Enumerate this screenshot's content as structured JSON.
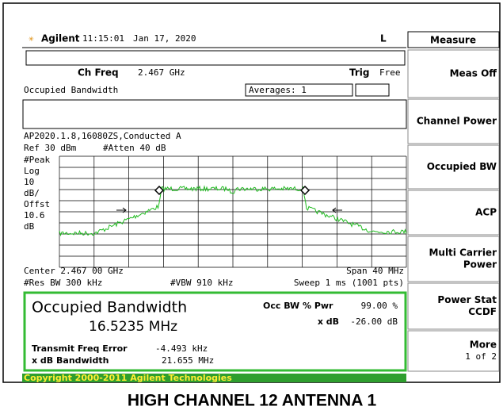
{
  "header": {
    "brand": "Agilent",
    "time": "11:15:01",
    "date": "Jan 17, 2020",
    "mode": "L"
  },
  "menu": {
    "title": "Measure",
    "buttons": [
      [
        "Meas Off"
      ],
      [
        "Channel Power"
      ],
      [
        "Occupied BW"
      ],
      [
        "ACP"
      ],
      [
        "Multi Carrier",
        "Power"
      ],
      [
        "Power Stat",
        "CCDF"
      ],
      [
        "More",
        "1 of 2"
      ]
    ]
  },
  "status": {
    "ch_freq_label": "Ch Freq",
    "ch_freq": "2.467 GHz",
    "trig_label": "Trig",
    "trig": "Free",
    "measurement": "Occupied Bandwidth",
    "averages": "Averages: 1"
  },
  "trace_info": {
    "title": "AP2020.1.8,16080ZS,Conducted A",
    "ref": "Ref 30 dBm",
    "atten": "#Atten 40 dB",
    "scale": [
      "#Peak",
      "Log",
      "10",
      "dB/",
      "Offst",
      "10.6",
      "dB"
    ],
    "center": "Center 2.467 00 GHz",
    "span": "Span 40 MHz",
    "rbw": "#Res BW 300 kHz",
    "vbw": "#VBW 910 kHz",
    "sweep": "Sweep 1 ms (1001 pts)"
  },
  "result": {
    "title": "Occupied Bandwidth",
    "bandwidth": "16.5235 MHz",
    "pwr_label": "Occ BW % Pwr",
    "pwr": "99.00 %",
    "xdb_label": "x dB",
    "xdb": "-26.00 dB",
    "freq_err_label": "Transmit Freq Error",
    "freq_err": "-4.493 kHz",
    "xdb_bw_label": "x dB Bandwidth",
    "xdb_bw": "21.655 MHz"
  },
  "footer": "Copyright 2000-2011 Agilent Technologies",
  "caption": "HIGH CHANNEL 12 ANTENNA 1"
}
